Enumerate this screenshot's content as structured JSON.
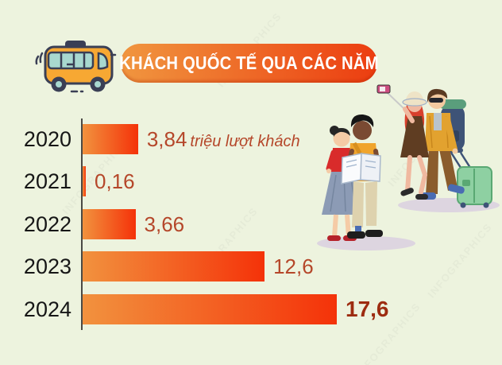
{
  "page": {
    "background_color": "#edf3de"
  },
  "header": {
    "title": "KHÁCH QUỐC TẾ QUA CÁC NĂM",
    "banner_gradient": [
      "#f0963f",
      "#ec3d10"
    ],
    "bus_icon": "bus-icon"
  },
  "chart_data": {
    "type": "bar",
    "orientation": "horizontal",
    "title": "KHÁCH QUỐC TẾ QUA CÁC NĂM",
    "categories": [
      "2020",
      "2021",
      "2022",
      "2023",
      "2024"
    ],
    "values": [
      3.84,
      0.16,
      3.66,
      12.6,
      17.6
    ],
    "value_labels": [
      "3,84",
      "0,16",
      "3,66",
      "12,6",
      "17,6"
    ],
    "unit": "triệu lượt khách",
    "xlim": [
      0,
      17.6
    ],
    "grid": false,
    "legend": "none",
    "bar_gradient": [
      "#f2923e",
      "#f43209"
    ],
    "axis_line_color": "#4a4a45",
    "year_label_color": "#161616",
    "value_label_color": "#b5472a",
    "emphasized_category": "2024",
    "emphasized_value_color": "#9d2c10"
  },
  "illustration": {
    "alt": "Four tourists: woman and man reading a map, woman with selfie stick, man with backpack pulling a green suitcase"
  },
  "watermark": {
    "text": "INFOGRAPHICS"
  }
}
